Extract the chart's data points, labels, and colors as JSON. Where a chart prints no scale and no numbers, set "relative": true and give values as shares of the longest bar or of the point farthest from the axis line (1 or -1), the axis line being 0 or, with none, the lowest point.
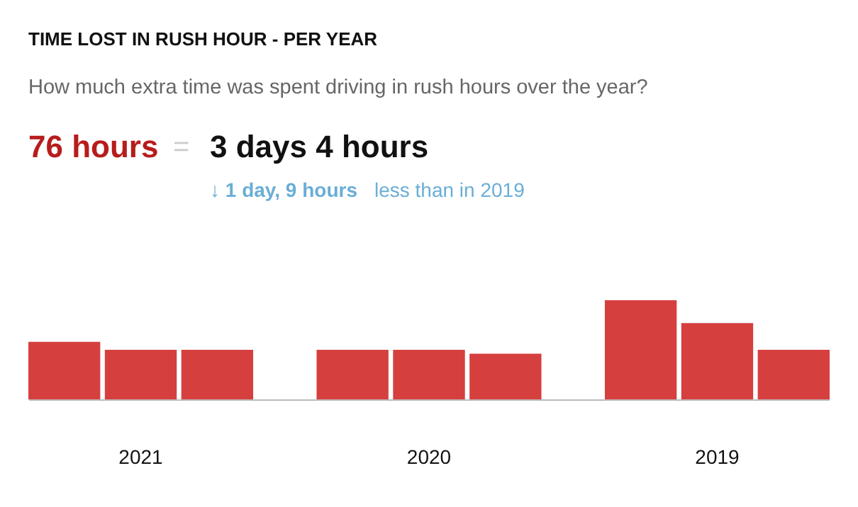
{
  "chart_data": {
    "type": "bar",
    "title": "TIME LOST IN RUSH HOUR - PER YEAR",
    "subtitle": "How much extra time was spent driving in rush hours over the year?",
    "categories": [
      "2021",
      "2020",
      "2019"
    ],
    "series": [
      {
        "color": "#d5403f",
        "values": [
          0.58,
          0.5,
          1
        ]
      },
      {
        "color": "#d5403f",
        "values": [
          0.5,
          0.5,
          0.77
        ]
      },
      {
        "color": "#d5403f",
        "values": [
          0.5,
          0.46,
          0.5
        ]
      }
    ],
    "relative": true,
    "tick_labels": "x",
    "annotations": [
      "76 hours",
      "=",
      "3 days 4 hours",
      "↓ 1 day, 9 hours",
      "less than in 2019"
    ]
  }
}
